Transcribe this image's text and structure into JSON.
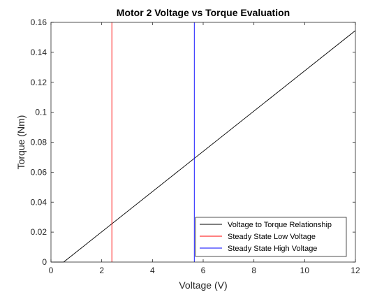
{
  "chart_data": {
    "type": "line",
    "title": "Motor 2 Voltage vs Torque Evaluation",
    "xlabel": "Voltage (V)",
    "ylabel": "Torque (Nm)",
    "xlim": [
      0,
      12
    ],
    "ylim": [
      0,
      0.16
    ],
    "xticks": [
      0,
      2,
      4,
      6,
      8,
      10,
      12
    ],
    "xtick_labels": [
      "0",
      "2",
      "4",
      "6",
      "8",
      "10",
      "12"
    ],
    "yticks": [
      0,
      0.02,
      0.04,
      0.06,
      0.08,
      0.1,
      0.12,
      0.14,
      0.16
    ],
    "ytick_labels": [
      "0",
      "0.02",
      "0.04",
      "0.06",
      "0.08",
      "0.1",
      "0.12",
      "0.14",
      "0.16"
    ],
    "grid": false,
    "legend_position": "bottom-right",
    "series": [
      {
        "name": "Voltage to Torque Relationship",
        "color": "#000000",
        "kind": "line",
        "x": [
          0,
          0.5,
          12
        ],
        "y": [
          0,
          0,
          0.1545
        ]
      },
      {
        "name": "Steady State Low Voltage",
        "color": "#ff0000",
        "kind": "vline",
        "x": [
          2.4,
          2.4
        ],
        "y": [
          0,
          0.16
        ]
      },
      {
        "name": "Steady State High Voltage",
        "color": "#0000ff",
        "kind": "vline",
        "x": [
          5.65,
          5.65
        ],
        "y": [
          0,
          0.16
        ]
      }
    ]
  }
}
